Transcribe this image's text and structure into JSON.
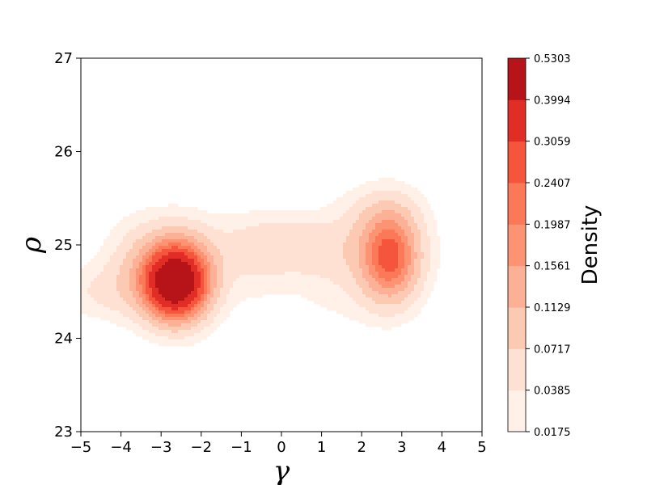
{
  "chart_data": {
    "type": "heatmap",
    "subtype": "kde-filled-contour",
    "title": "",
    "xlabel": "γ",
    "ylabel": "ρ",
    "xlim": [
      -5,
      5
    ],
    "ylim": [
      23,
      27
    ],
    "x_ticks": [
      "−5",
      "−4",
      "−3",
      "−2",
      "−1",
      "0",
      "1",
      "2",
      "3",
      "4",
      "5"
    ],
    "y_ticks": [
      "23",
      "24",
      "25",
      "26",
      "27"
    ],
    "colorbar": {
      "label": "Density",
      "levels": [
        0.0175,
        0.0385,
        0.0717,
        0.1129,
        0.1561,
        0.1987,
        0.2407,
        0.3059,
        0.3994,
        0.5303
      ],
      "level_labels": [
        "0.0175",
        "0.0385",
        "0.0717",
        "0.1129",
        "0.1561",
        "0.1987",
        "0.2407",
        "0.3059",
        "0.3994",
        "0.5303"
      ],
      "colors": [
        "#fff0e8",
        "#fee1d3",
        "#fcc9b3",
        "#fcb095",
        "#fc9373",
        "#fb7858",
        "#f5553d",
        "#e02e27",
        "#b61419"
      ]
    },
    "components": [
      {
        "mx": -2.65,
        "my": 24.6,
        "sx": 0.5,
        "sy": 0.25,
        "w": 0.48
      },
      {
        "mx": -3.3,
        "my": 24.75,
        "sx": 0.7,
        "sy": 0.35,
        "w": 0.08
      },
      {
        "mx": -2.3,
        "my": 24.7,
        "sx": 0.55,
        "sy": 0.35,
        "w": 0.07
      },
      {
        "mx": -4.5,
        "my": 24.5,
        "sx": 0.8,
        "sy": 0.2,
        "w": 0.035
      },
      {
        "mx": 0.2,
        "my": 25.0,
        "sx": 1.0,
        "sy": 0.2,
        "w": 0.05
      },
      {
        "mx": -0.8,
        "my": 24.85,
        "sx": 0.8,
        "sy": 0.35,
        "w": 0.03
      },
      {
        "mx": 1.3,
        "my": 24.75,
        "sx": 0.8,
        "sy": 0.4,
        "w": 0.025
      },
      {
        "mx": 2.7,
        "my": 24.88,
        "sx": 0.45,
        "sy": 0.3,
        "w": 0.21
      },
      {
        "mx": 2.6,
        "my": 24.9,
        "sx": 0.75,
        "sy": 0.4,
        "w": 0.06
      },
      {
        "mx": 2.5,
        "my": 25.35,
        "sx": 0.7,
        "sy": 0.2,
        "w": 0.025
      }
    ]
  }
}
